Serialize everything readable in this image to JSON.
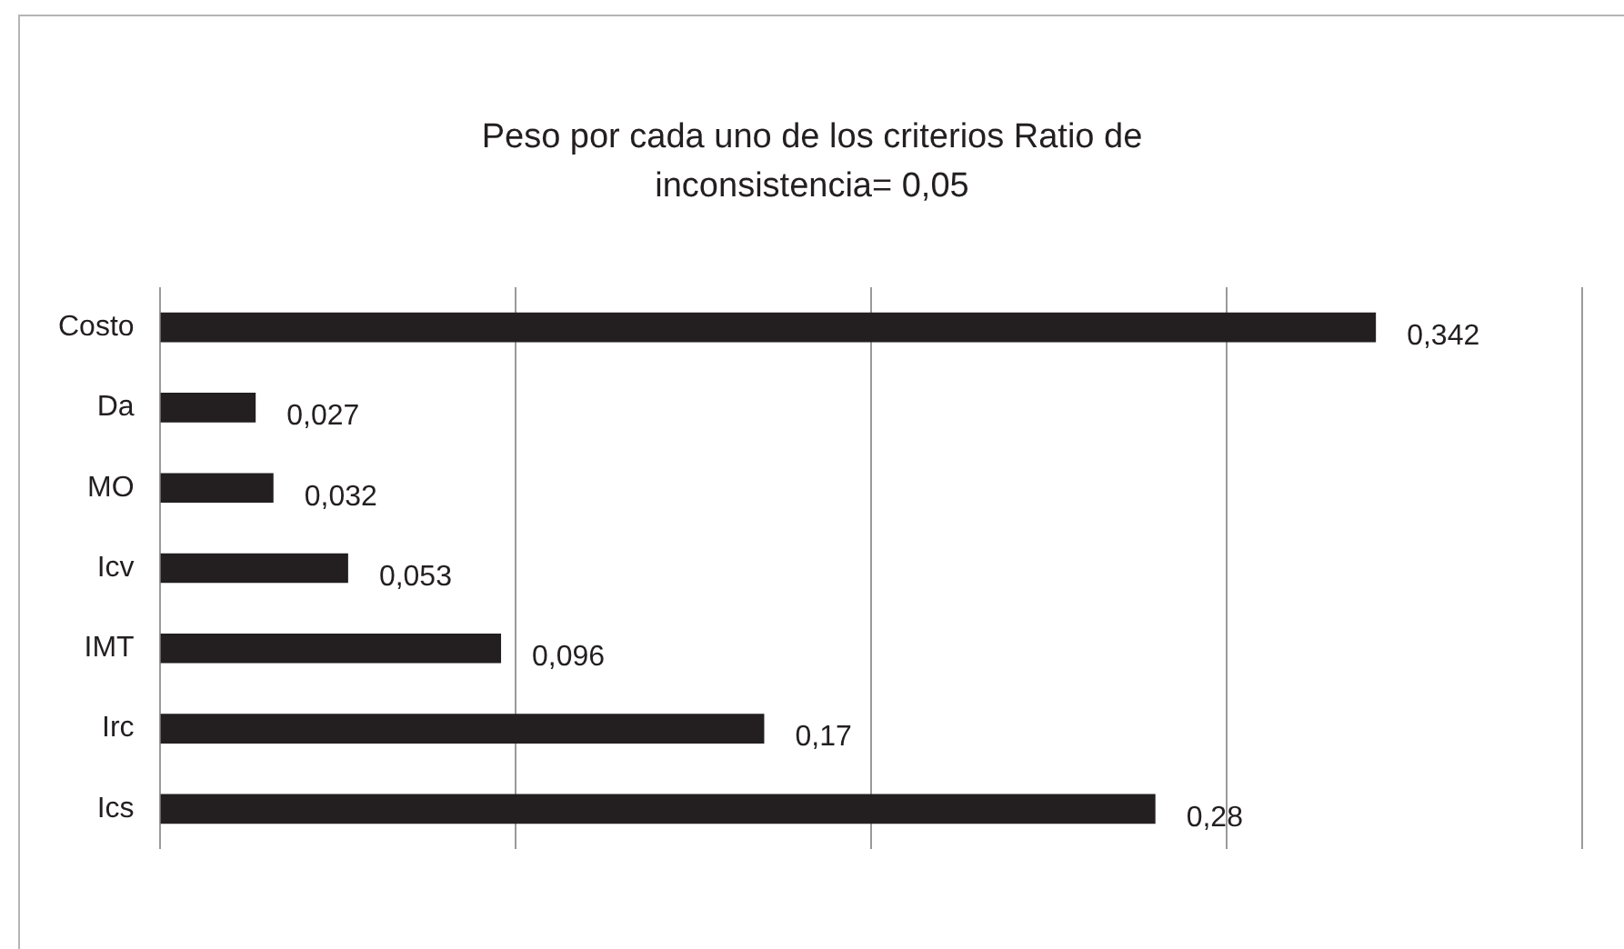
{
  "chart_data": {
    "type": "bar",
    "orientation": "horizontal",
    "title": "Peso por cada uno de los criterios Ratio de inconsistencia= 0,05",
    "categories": [
      "Costo",
      "Da",
      "MO",
      "Icv",
      "IMT",
      "Irc",
      "Ics"
    ],
    "values": [
      0.342,
      0.027,
      0.032,
      0.053,
      0.096,
      0.17,
      0.28
    ],
    "value_labels": [
      "0,342",
      "0,027",
      "0,032",
      "0,053",
      "0,096",
      "0,17",
      "0,28"
    ],
    "color": "#231f20",
    "xlim": [
      0,
      0.4
    ],
    "xticks": [
      {
        "value": 0,
        "label": null
      },
      {
        "value": 0.1,
        "label": null
      },
      {
        "value": 0.2,
        "label": null
      },
      {
        "value": 0.3,
        "label": null
      },
      {
        "value": 0.4,
        "label": null
      }
    ],
    "tick_labels": "y",
    "grid": "x",
    "legend": false
  }
}
